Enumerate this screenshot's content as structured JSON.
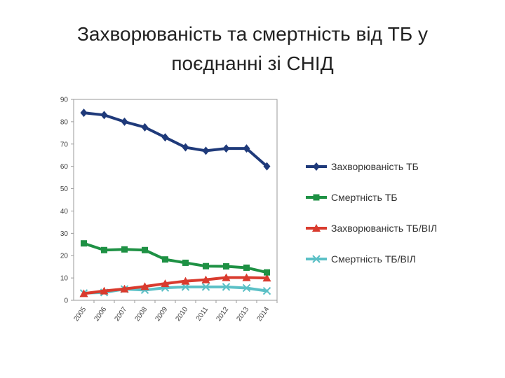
{
  "slide": {
    "title_line1": "Захворюваність та смертність від ТБ у",
    "title_line2": "поєднанні зі СНІД"
  },
  "chart_data": {
    "type": "line",
    "title": "",
    "xlabel": "",
    "ylabel": "",
    "x": [
      "2005",
      "2006",
      "2007",
      "2008",
      "2009",
      "2010",
      "2011",
      "2012",
      "2013",
      "2014"
    ],
    "ylim": [
      0,
      90
    ],
    "yticks": [
      0,
      10,
      20,
      30,
      40,
      50,
      60,
      70,
      80,
      90
    ],
    "grid": false,
    "legend_position": "right",
    "series": [
      {
        "name": "Захворюваність ТБ",
        "color": "#1f3a7a",
        "marker": "diamond",
        "values": [
          84,
          83,
          80,
          77.5,
          73,
          68.5,
          67,
          68,
          68,
          60
        ]
      },
      {
        "name": "Смертність ТБ",
        "color": "#1e9144",
        "marker": "square",
        "values": [
          25.5,
          22.5,
          22.8,
          22.5,
          18.3,
          16.8,
          15.3,
          15.2,
          14.6,
          12.5
        ]
      },
      {
        "name": "Захворюваність ТБ/ВІЛ",
        "color": "#d93b2e",
        "marker": "triangle",
        "values": [
          3,
          4.2,
          5.1,
          6.2,
          7.5,
          8.6,
          9.2,
          10.2,
          10.2,
          10
        ]
      },
      {
        "name": "Смертність ТБ/ВІЛ",
        "color": "#5bc0c6",
        "marker": "x",
        "values": [
          3.2,
          3.5,
          5,
          4.6,
          5.6,
          6,
          6,
          6,
          5.5,
          4.2
        ]
      }
    ]
  }
}
